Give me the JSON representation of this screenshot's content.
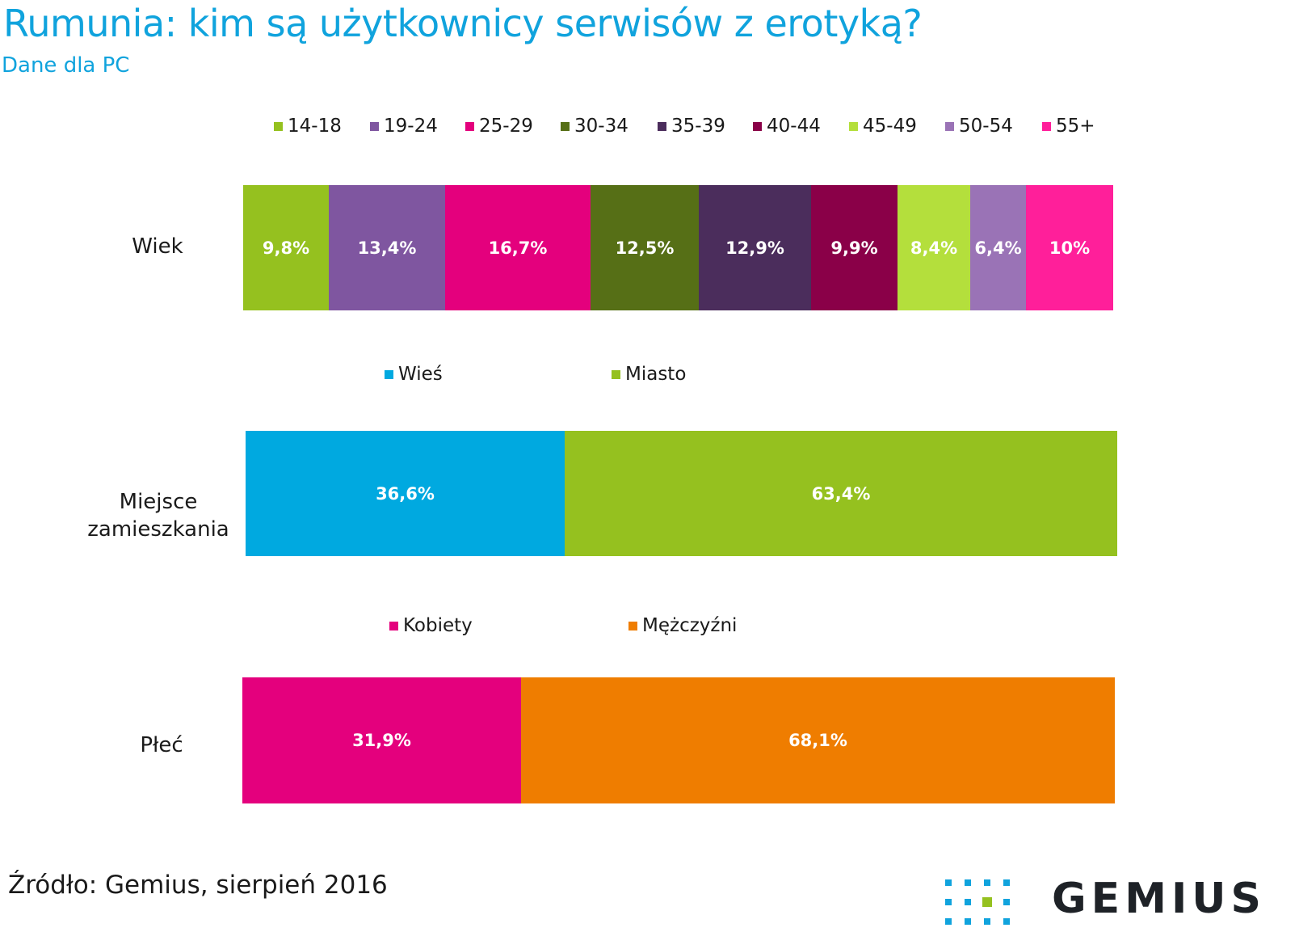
{
  "title": "Rumunia: kim są użytkownicy serwisów z erotyką?",
  "subtitle": "Dane dla PC",
  "source": "Źródło: Gemius, sierpień 2016",
  "logo_text": "GEMIUS",
  "chart_data": {
    "type": "bar",
    "orientation": "horizontal",
    "stacked": true,
    "percent_scale": true,
    "groups": [
      {
        "label": "Wiek",
        "series": [
          {
            "name": "14-18",
            "value": 9.8,
            "label": "9,8%",
            "color": "#95c11f"
          },
          {
            "name": "19-24",
            "value": 13.4,
            "label": "13,4%",
            "color": "#7f56a0"
          },
          {
            "name": "25-29",
            "value": 16.7,
            "label": "16,7%",
            "color": "#e4007d"
          },
          {
            "name": "30-34",
            "value": 12.5,
            "label": "12,5%",
            "color": "#566f16"
          },
          {
            "name": "35-39",
            "value": 12.9,
            "label": "12,9%",
            "color": "#4b2d5c"
          },
          {
            "name": "40-44",
            "value": 9.9,
            "label": "9,9%",
            "color": "#8a0048"
          },
          {
            "name": "45-49",
            "value": 8.4,
            "label": "8,4%",
            "color": "#b4df3c"
          },
          {
            "name": "50-54",
            "value": 6.4,
            "label": "6,4%",
            "color": "#9a73b6"
          },
          {
            "name": "55+",
            "value": 10,
            "label": "10%",
            "color": "#ff1f9a"
          }
        ]
      },
      {
        "label": "Miejsce zamieszkania",
        "series": [
          {
            "name": "Wieś",
            "value": 36.6,
            "label": "36,6%",
            "color": "#00a9e0"
          },
          {
            "name": "Miasto",
            "value": 63.4,
            "label": "63,4%",
            "color": "#95c11f"
          }
        ]
      },
      {
        "label": "Płeć",
        "series": [
          {
            "name": "Kobiety",
            "value": 31.9,
            "label": "31,9%",
            "color": "#e4007d"
          },
          {
            "name": "Mężczyźni",
            "value": 68.1,
            "label": "68,1%",
            "color": "#ef7d00"
          }
        ]
      }
    ]
  }
}
